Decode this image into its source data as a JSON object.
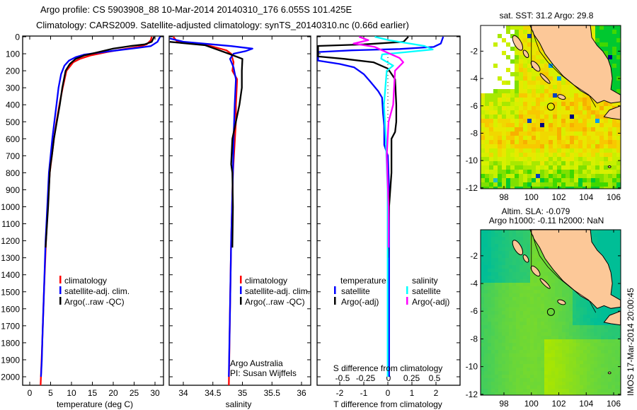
{
  "title": {
    "line1": "Argo profile: CS 5903908_88 10-Mar-2014 20140310_176 6.055S 101.425E",
    "line2": "Climatology: CARS2009. Satellite-adjusted climatology: synTS_20140310.nc (0.66d earlier)"
  },
  "colors": {
    "climatology": "#ff0000",
    "satellite": "#0000ff",
    "argo": "#000000",
    "sal_satellite": "#00ffff",
    "sal_argo": "#ff00ff",
    "land": "#fcc898"
  },
  "depth_axis": {
    "ticks": [
      0,
      100,
      200,
      300,
      400,
      500,
      600,
      700,
      800,
      900,
      1000,
      1100,
      1200,
      1300,
      1400,
      1500,
      1600,
      1700,
      1800,
      1900,
      2000
    ],
    "range": [
      0,
      2058
    ]
  },
  "chart_data": [
    {
      "type": "line",
      "id": "temperature",
      "xlabel": "temperature (deg C)",
      "ylabel": "depth",
      "xlim": [
        -1.7,
        32.1
      ],
      "ylim": [
        2058,
        0
      ],
      "xticks": [
        0,
        5,
        10,
        15,
        20,
        25,
        30
      ],
      "legend": [
        "climatology",
        "satellite-adj. clim.",
        "Argo(..raw -QC)"
      ],
      "series": [
        {
          "name": "climatology",
          "color": "#ff0000",
          "points": [
            [
              0,
              29.2
            ],
            [
              20,
              29
            ],
            [
              45,
              28
            ],
            [
              60,
              26
            ],
            [
              75,
              22
            ],
            [
              90,
              18.5
            ],
            [
              110,
              14.5
            ],
            [
              130,
              12
            ],
            [
              150,
              10.4
            ],
            [
              200,
              8.8
            ],
            [
              300,
              7.9
            ],
            [
              400,
              7.1
            ],
            [
              500,
              6.4
            ],
            [
              600,
              5.8
            ],
            [
              700,
              5.3
            ],
            [
              800,
              4.8
            ],
            [
              1000,
              4.3
            ],
            [
              1200,
              3.9
            ],
            [
              1500,
              3.4
            ],
            [
              1800,
              3.0
            ],
            [
              2058,
              2.6
            ]
          ]
        },
        {
          "name": "satellite-adj. clim.",
          "color": "#0000ff",
          "points": [
            [
              0,
              31.2
            ],
            [
              30,
              30.6
            ],
            [
              55,
              29
            ],
            [
              65,
              26
            ],
            [
              80,
              21
            ],
            [
              95,
              16
            ],
            [
              105,
              13
            ],
            [
              120,
              11
            ],
            [
              140,
              9.4
            ],
            [
              170,
              8.3
            ],
            [
              220,
              7.5
            ],
            [
              300,
              6.9
            ],
            [
              400,
              6.4
            ],
            [
              500,
              5.9
            ],
            [
              600,
              5.4
            ],
            [
              800,
              4.6
            ],
            [
              1000,
              4.2
            ],
            [
              1200,
              3.8
            ],
            [
              1500,
              3.4
            ],
            [
              1800,
              3.0
            ],
            [
              1900,
              2.9
            ],
            [
              2000,
              2.7
            ]
          ]
        },
        {
          "name": "Argo(..raw -QC)",
          "color": "#000000",
          "points": [
            [
              0,
              29.8
            ],
            [
              30,
              29.2
            ],
            [
              45,
              27.5
            ],
            [
              55,
              24
            ],
            [
              70,
              20
            ],
            [
              90,
              16.5
            ],
            [
              110,
              13
            ],
            [
              130,
              11
            ],
            [
              160,
              9.6
            ],
            [
              200,
              8.6
            ],
            [
              300,
              7.8
            ],
            [
              400,
              7.2
            ],
            [
              500,
              6.5
            ],
            [
              600,
              5.8
            ],
            [
              700,
              5.3
            ],
            [
              750,
              5.0
            ],
            [
              800,
              4.8
            ],
            [
              1000,
              4.4
            ],
            [
              1200,
              3.9
            ],
            [
              1240,
              3.8
            ]
          ]
        }
      ]
    },
    {
      "type": "line",
      "id": "salinity",
      "xlabel": "salinity",
      "ylabel": "depth",
      "xlim": [
        33.76,
        36.16
      ],
      "ylim": [
        2058,
        0
      ],
      "xticks": [
        "34",
        "34.5",
        "35",
        "35.5",
        "36"
      ],
      "legend": [
        "climatology",
        "satellite-adj. clim.",
        "Argo(..raw -QC)"
      ],
      "annotation": [
        "Argo Australia",
        "PI: Susan Wijffels"
      ],
      "series": [
        {
          "name": "climatology",
          "color": "#ff0000",
          "points": [
            [
              0,
              33.83
            ],
            [
              30,
              33.9
            ],
            [
              50,
              34.41
            ],
            [
              80,
              34.73
            ],
            [
              100,
              34.81
            ],
            [
              150,
              34.85
            ],
            [
              200,
              34.83
            ],
            [
              250,
              34.91
            ],
            [
              400,
              34.89
            ],
            [
              500,
              34.89
            ],
            [
              800,
              34.84
            ],
            [
              1200,
              34.81
            ],
            [
              1600,
              34.79
            ],
            [
              2058,
              34.77
            ]
          ]
        },
        {
          "name": "satellite-adj. clim.",
          "color": "#0000ff",
          "points": [
            [
              10,
              33.77
            ],
            [
              30,
              34.01
            ],
            [
              55,
              34.81
            ],
            [
              70,
              35.17
            ],
            [
              85,
              35.05
            ],
            [
              100,
              34.85
            ],
            [
              130,
              34.79
            ],
            [
              180,
              34.85
            ],
            [
              250,
              34.89
            ],
            [
              400,
              34.87
            ],
            [
              600,
              34.85
            ],
            [
              800,
              34.84
            ],
            [
              1200,
              34.81
            ],
            [
              1600,
              34.79
            ],
            [
              2000,
              34.77
            ]
          ]
        },
        {
          "name": "Argo(..raw -QC)",
          "color": "#000000",
          "points": [
            [
              30,
              33.77
            ],
            [
              50,
              34.37
            ],
            [
              80,
              34.61
            ],
            [
              100,
              34.77
            ],
            [
              130,
              35.0
            ],
            [
              200,
              34.99
            ],
            [
              300,
              34.99
            ],
            [
              400,
              34.95
            ],
            [
              500,
              34.89
            ],
            [
              600,
              34.83
            ],
            [
              750,
              34.81
            ],
            [
              800,
              34.83
            ],
            [
              1000,
              34.84
            ],
            [
              1240,
              34.83
            ]
          ]
        }
      ]
    },
    {
      "type": "line",
      "id": "difference",
      "xlabel": "T difference from climatology",
      "xlim": [
        -2.94,
        3.0
      ],
      "ylim": [
        2058,
        0
      ],
      "xticks": [
        "-2",
        "-1",
        "0",
        "1",
        "2"
      ],
      "s_axis_label": "S difference from climatology",
      "s_xticks": [
        "-0.5",
        "-0.25",
        "0",
        "0.25",
        "0.5"
      ],
      "legend": {
        "temperature": "temperature",
        "salinity": "salinity",
        "items": [
          "satellite",
          "Argo(-adj)",
          "satellite",
          "Argo(-adj)"
        ]
      },
      "series": [
        {
          "name": "temperature satellite",
          "var": "T",
          "color": "#0000ff",
          "points": [
            [
              0,
              2.3
            ],
            [
              40,
              2.2
            ],
            [
              60,
              1.9
            ],
            [
              72,
              0.5
            ],
            [
              80,
              -1.5
            ],
            [
              90,
              -2.9
            ],
            [
              140,
              -2.9
            ],
            [
              160,
              -2.0
            ],
            [
              180,
              -1.4
            ],
            [
              220,
              -1.0
            ],
            [
              262,
              -0.74
            ],
            [
              320,
              -0.4
            ],
            [
              358,
              -0.24
            ],
            [
              450,
              -0.2
            ],
            [
              524,
              -0.15
            ],
            [
              636,
              -0.15
            ],
            [
              700,
              0
            ],
            [
              900,
              0.05
            ],
            [
              1200,
              0.05
            ],
            [
              1600,
              0.05
            ],
            [
              2000,
              0.05
            ]
          ]
        },
        {
          "name": "temperature Argo(-adj)",
          "var": "T",
          "color": "#000000",
          "points": [
            [
              0,
              0.85
            ],
            [
              30,
              0.65
            ],
            [
              45,
              -1
            ],
            [
              54,
              -2.9
            ],
            [
              116,
              -2.9
            ],
            [
              130,
              -1.8
            ],
            [
              150,
              -0.6
            ],
            [
              187,
              0
            ],
            [
              250,
              0.3
            ],
            [
              400,
              0.35
            ],
            [
              500,
              0.35
            ],
            [
              560,
              0.3
            ],
            [
              600,
              0.15
            ],
            [
              800,
              0.15
            ],
            [
              1000,
              0.05
            ],
            [
              1300,
              0.0
            ]
          ]
        },
        {
          "name": "salinity satellite",
          "var": "S",
          "color": "#00ffff",
          "points": [
            [
              0,
              -0.15
            ],
            [
              20,
              0
            ],
            [
              54,
              0.39
            ],
            [
              75,
              0.48
            ],
            [
              90,
              0.2
            ],
            [
              104,
              -0.07
            ],
            [
              129,
              -0.08
            ],
            [
              170,
              0.05
            ],
            [
              200,
              -0.02
            ],
            [
              400,
              -0.05
            ],
            [
              600,
              -0.03
            ],
            [
              900,
              -0.01
            ],
            [
              1400,
              -0.01
            ],
            [
              2000,
              -0.01
            ]
          ]
        },
        {
          "name": "salinity Argo(-adj)",
          "var": "S",
          "color": "#ff00ff",
          "points": [
            [
              0,
              -0.32
            ],
            [
              20,
              -0.22
            ],
            [
              40,
              -0.38
            ],
            [
              60,
              -0.15
            ],
            [
              80,
              -0.07
            ],
            [
              125,
              0.12
            ],
            [
              150,
              0.16
            ],
            [
              200,
              0.07
            ],
            [
              300,
              0.06
            ],
            [
              400,
              0.05
            ],
            [
              500,
              0.0
            ],
            [
              700,
              -0.02
            ],
            [
              1000,
              0.0
            ],
            [
              1240,
              0.0
            ]
          ]
        }
      ]
    }
  ],
  "maps": [
    {
      "id": "sst",
      "title": "sat. SST: 31.2 Argo: 29.8",
      "lon_ticks": [
        "98",
        "100",
        "102",
        "104",
        "106"
      ],
      "lat_ticks": [
        "-2",
        "-4",
        "-6",
        "-8",
        "-10",
        "-12"
      ],
      "argo_position": [
        101.425,
        -6.055
      ]
    },
    {
      "id": "sla",
      "title_lines": [
        "Altim. SLA: -0.079",
        "Argo h1000: -0.11 h2000: NaN"
      ],
      "lon_ticks": [
        "98",
        "100",
        "102",
        "104",
        "106"
      ],
      "lat_ticks": [
        "-2",
        "-4",
        "-6",
        "-8",
        "-10",
        "-12"
      ],
      "argo_position": [
        101.425,
        -6.055
      ]
    }
  ],
  "footer": "IMOS 17-Mar-2014 20:00:45"
}
